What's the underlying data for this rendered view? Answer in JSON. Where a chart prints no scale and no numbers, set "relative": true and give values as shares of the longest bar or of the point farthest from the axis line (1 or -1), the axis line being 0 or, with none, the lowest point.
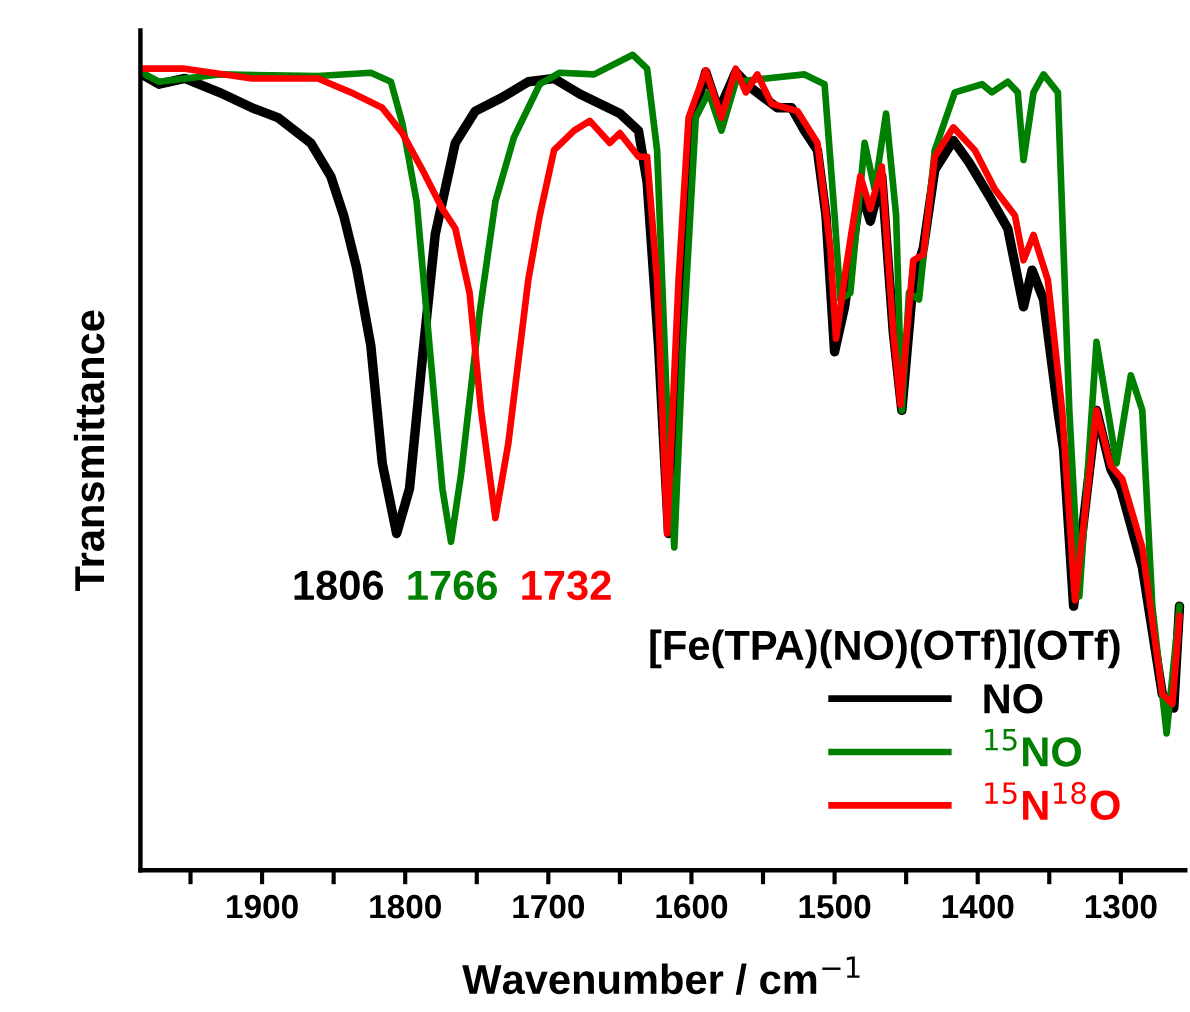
{
  "chart_data": {
    "type": "line",
    "relative": true,
    "xlabel": "Wavenumber / cm$^{−1}$",
    "ylabel": "Transmittance",
    "xlim": [
      1985,
      1255
    ],
    "xticks": [
      {
        "value": 1950,
        "label": null
      },
      1900,
      {
        "value": 1850,
        "label": null
      },
      1800,
      {
        "value": 1750,
        "label": null
      },
      1700,
      {
        "value": 1650,
        "label": null
      },
      1600,
      {
        "value": 1550,
        "label": null
      },
      1500,
      {
        "value": 1450,
        "label": null
      },
      1400,
      {
        "value": 1350,
        "label": null
      },
      1300
    ],
    "legend": "bottom right",
    "legend_title": "[Fe(TPA)(NO)(OTf)](OTf)",
    "grid": false,
    "marker": "none",
    "line_style": "solid",
    "annotations": [
      "1806",
      "1766",
      "1732"
    ],
    "series": [
      {
        "name": "NO",
        "color": "#000000",
        "x": [
          1983,
          1972,
          1954,
          1930,
          1907,
          1889,
          1866,
          1852,
          1843,
          1834,
          1824,
          1816,
          1806,
          1797,
          1788,
          1779,
          1765,
          1751,
          1733,
          1714,
          1696,
          1678,
          1650,
          1637,
          1631,
          1623,
          1616,
          1606,
          1599,
          1590,
          1581,
          1569,
          1558,
          1540,
          1530,
          1521,
          1512,
          1506,
          1500,
          1493,
          1482,
          1475,
          1467,
          1459,
          1453,
          1445,
          1438,
          1430,
          1417,
          1406,
          1392,
          1379,
          1368,
          1362,
          1354,
          1344,
          1340,
          1333,
          1317,
          1307,
          1300,
          1285,
          1271,
          1263,
          1259
        ],
        "values": [
          0.975,
          0.964,
          0.971,
          0.954,
          0.935,
          0.923,
          0.892,
          0.851,
          0.803,
          0.739,
          0.643,
          0.499,
          0.413,
          0.468,
          0.628,
          0.78,
          0.892,
          0.931,
          0.947,
          0.967,
          0.971,
          0.952,
          0.928,
          0.907,
          0.844,
          0.643,
          0.413,
          0.724,
          0.923,
          0.979,
          0.931,
          0.979,
          0.959,
          0.935,
          0.935,
          0.907,
          0.883,
          0.803,
          0.636,
          0.691,
          0.835,
          0.796,
          0.851,
          0.66,
          0.564,
          0.724,
          0.763,
          0.859,
          0.895,
          0.868,
          0.827,
          0.787,
          0.691,
          0.736,
          0.7,
          0.564,
          0.516,
          0.324,
          0.564,
          0.492,
          0.468,
          0.372,
          0.216,
          0.199,
          0.324
        ]
      },
      {
        "name": "$^{15}$NO",
        "color": "#008000",
        "x": [
          1984,
          1972,
          1930,
          1861,
          1824,
          1810,
          1802,
          1792,
          1783,
          1774,
          1768,
          1761,
          1748,
          1737,
          1724,
          1706,
          1692,
          1668,
          1641,
          1631,
          1624,
          1617,
          1612,
          1606,
          1597,
          1588,
          1579,
          1569,
          1548,
          1521,
          1507,
          1500,
          1496,
          1489,
          1479,
          1472,
          1464,
          1457,
          1453,
          1448,
          1441,
          1430,
          1416,
          1397,
          1390,
          1379,
          1372,
          1368,
          1361,
          1354,
          1344,
          1336,
          1329,
          1317,
          1303,
          1293,
          1285,
          1278,
          1268,
          1259
        ],
        "values": [
          0.978,
          0.967,
          0.976,
          0.974,
          0.978,
          0.967,
          0.916,
          0.82,
          0.643,
          0.468,
          0.403,
          0.485,
          0.684,
          0.82,
          0.899,
          0.964,
          0.978,
          0.976,
          1.0,
          0.983,
          0.883,
          0.564,
          0.396,
          0.643,
          0.923,
          0.954,
          0.907,
          0.967,
          0.971,
          0.976,
          0.964,
          0.803,
          0.7,
          0.708,
          0.892,
          0.835,
          0.928,
          0.803,
          0.564,
          0.708,
          0.7,
          0.883,
          0.954,
          0.964,
          0.954,
          0.967,
          0.954,
          0.871,
          0.954,
          0.976,
          0.954,
          0.564,
          0.336,
          0.648,
          0.499,
          0.607,
          0.564,
          0.324,
          0.168,
          0.324
        ]
      },
      {
        "name": "$^{15}$N$^{18}$O",
        "color": "#ff0000",
        "x": [
          1984,
          1954,
          1907,
          1861,
          1838,
          1816,
          1802,
          1788,
          1774,
          1765,
          1755,
          1747,
          1737,
          1728,
          1714,
          1706,
          1696,
          1682,
          1671,
          1657,
          1650,
          1637,
          1631,
          1624,
          1617,
          1609,
          1602,
          1590,
          1579,
          1569,
          1562,
          1554,
          1544,
          1526,
          1512,
          1503,
          1499,
          1492,
          1482,
          1475,
          1467,
          1459,
          1454,
          1445,
          1438,
          1430,
          1417,
          1402,
          1388,
          1374,
          1368,
          1361,
          1351,
          1341,
          1332,
          1317,
          1307,
          1299,
          1285,
          1271,
          1264,
          1259
        ],
        "values": [
          0.983,
          0.983,
          0.971,
          0.971,
          0.954,
          0.935,
          0.904,
          0.859,
          0.811,
          0.787,
          0.708,
          0.564,
          0.432,
          0.523,
          0.724,
          0.803,
          0.883,
          0.907,
          0.919,
          0.892,
          0.904,
          0.875,
          0.875,
          0.724,
          0.413,
          0.724,
          0.923,
          0.981,
          0.923,
          0.983,
          0.954,
          0.976,
          0.94,
          0.931,
          0.892,
          0.763,
          0.652,
          0.739,
          0.851,
          0.811,
          0.863,
          0.66,
          0.571,
          0.748,
          0.755,
          0.875,
          0.911,
          0.883,
          0.835,
          0.803,
          0.748,
          0.779,
          0.724,
          0.564,
          0.331,
          0.564,
          0.496,
          0.48,
          0.396,
          0.216,
          0.204,
          0.312
        ]
      }
    ]
  }
}
